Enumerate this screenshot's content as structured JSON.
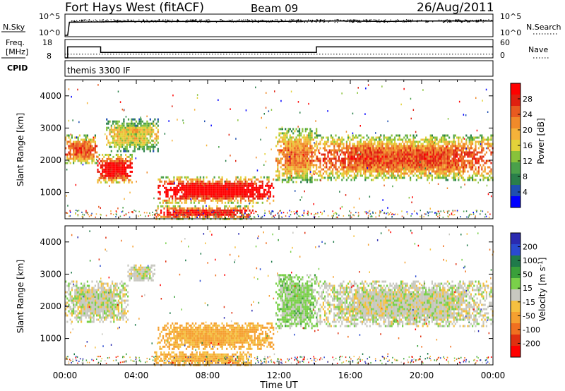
{
  "header": {
    "station": "Fort Hays West (fitACF)",
    "beam": "Beam 09",
    "date": "26/Aug/2011"
  },
  "noise_panel": {
    "left_label": "N.Sky",
    "right_label": "N.Search",
    "left_ticks": [
      "10^5",
      "10^0"
    ],
    "right_ticks": [
      "10^5",
      "10^0"
    ]
  },
  "freq_panel": {
    "left_label_1": "Freq.",
    "left_label_2": "[MHz]",
    "left_ticks": [
      "18",
      "8"
    ],
    "right_label": "Nave",
    "right_ticks": [
      "60",
      "0"
    ]
  },
  "cpid_panel": {
    "label": "CPID",
    "program": "themis 3300 IF"
  },
  "power_panel": {
    "ylabel": "Slant Range [km]",
    "yticks": [
      "1000",
      "2000",
      "3000",
      "4000"
    ],
    "colorbar_label": "Power [dB]",
    "colorbar_ticks": [
      "4",
      "8",
      "12",
      "16",
      "20",
      "24",
      "28"
    ],
    "colorbar_colors": [
      "#0000ff",
      "#1f4fb0",
      "#2a7f4a",
      "#4aa04a",
      "#88c23a",
      "#e3d23a",
      "#f5b23a",
      "#f08a2a",
      "#e85a20",
      "#e02010",
      "#ff0000"
    ]
  },
  "velocity_panel": {
    "ylabel": "Slant Range [km]",
    "yticks": [
      "1000",
      "2000",
      "3000",
      "4000"
    ],
    "colorbar_label": "Velocity [m s^-1]",
    "colorbar_ticks": [
      "200",
      "100",
      "50",
      "15",
      "-15",
      "-50",
      "-100",
      "-200"
    ],
    "colorbar_colors": [
      "#2a2ab0",
      "#2a4ad0",
      "#1f7a4a",
      "#3aa03a",
      "#7ad04a",
      "#c8c8c0",
      "#f5c040",
      "#f5a030",
      "#f07020",
      "#e03010",
      "#ff0000"
    ]
  },
  "xaxis": {
    "label": "Time UT",
    "ticks": [
      "00:00",
      "04:00",
      "08:00",
      "12:00",
      "16:00",
      "20:00",
      "00:00"
    ]
  },
  "chart_data": [
    {
      "type": "line",
      "title": "N.Sky / N.Search",
      "x_label": "Time UT",
      "x_range_hours": [
        0,
        24
      ],
      "y_scale": "log",
      "series": [
        {
          "name": "N.Sky",
          "x": [
            0,
            0.15,
            0.25,
            2,
            4,
            6,
            8,
            10,
            12,
            14,
            16,
            18,
            20,
            22,
            24
          ],
          "y_log10": [
            0,
            0,
            3.3,
            3.4,
            3.5,
            3.5,
            3.5,
            3.5,
            3.5,
            3.6,
            3.6,
            3.5,
            3.6,
            3.6,
            3.6
          ]
        },
        {
          "name": "N.Search",
          "x": [
            0,
            24
          ],
          "y_log10": [
            0,
            0
          ]
        }
      ]
    },
    {
      "type": "line",
      "title": "Freq. / Nave",
      "x_range_hours": [
        0,
        24
      ],
      "series": [
        {
          "name": "Freq. [MHz]",
          "x": [
            0,
            0.15,
            0.15,
            2.0,
            2.0,
            14.1,
            14.1,
            24
          ],
          "y": [
            8,
            8,
            14,
            14,
            11,
            11,
            14,
            14
          ]
        },
        {
          "name": "Nave",
          "x": [
            0,
            24
          ],
          "y": [
            12,
            12
          ]
        }
      ],
      "ylim_freq": [
        8,
        18
      ],
      "ylim_nave": [
        0,
        60
      ]
    },
    {
      "type": "heatmap",
      "title": "Power [dB]",
      "x_label": "Time UT",
      "y_label": "Slant Range [km]",
      "x_range_hours": [
        0,
        24
      ],
      "y_range_km": [
        180,
        4500
      ],
      "color_range": [
        0,
        30
      ],
      "echo_regions": [
        {
          "t0": 0.0,
          "t1": 1.8,
          "r0": 1900,
          "r1": 2800,
          "level": 18
        },
        {
          "t0": 1.8,
          "t1": 3.8,
          "r0": 1300,
          "r1": 2200,
          "level": 22
        },
        {
          "t0": 2.3,
          "t1": 5.2,
          "r0": 2300,
          "r1": 3300,
          "level": 12
        },
        {
          "t0": 3.5,
          "t1": 4.1,
          "r0": 2800,
          "r1": 3100,
          "level": 14
        },
        {
          "t0": 5.2,
          "t1": 11.7,
          "r0": 700,
          "r1": 1500,
          "level": 24
        },
        {
          "t0": 5.0,
          "t1": 10.5,
          "r0": 200,
          "r1": 600,
          "level": 22
        },
        {
          "t0": 11.8,
          "t1": 14.1,
          "r0": 1300,
          "r1": 3000,
          "level": 16
        },
        {
          "t0": 14.1,
          "t1": 24.0,
          "r0": 1400,
          "r1": 2800,
          "level": 18
        }
      ]
    },
    {
      "type": "heatmap",
      "title": "Velocity [m s^-1]",
      "x_label": "Time UT",
      "y_label": "Slant Range [km]",
      "x_range_hours": [
        0,
        24
      ],
      "y_range_km": [
        180,
        4500
      ],
      "color_range": [
        -200,
        200
      ],
      "echo_regions": [
        {
          "t0": 0.0,
          "t1": 3.5,
          "r0": 1500,
          "r1": 2800,
          "velocity": 0
        },
        {
          "t0": 3.5,
          "t1": 5.0,
          "r0": 2800,
          "r1": 3300,
          "velocity": 0
        },
        {
          "t0": 5.2,
          "t1": 11.7,
          "r0": 700,
          "r1": 1500,
          "velocity": -60
        },
        {
          "t0": 5.0,
          "t1": 10.5,
          "r0": 200,
          "r1": 600,
          "velocity": -50
        },
        {
          "t0": 11.8,
          "t1": 14.1,
          "r0": 1300,
          "r1": 3000,
          "velocity": 30
        },
        {
          "t0": 14.1,
          "t1": 24.0,
          "r0": 1400,
          "r1": 2800,
          "velocity": 0
        }
      ]
    }
  ]
}
